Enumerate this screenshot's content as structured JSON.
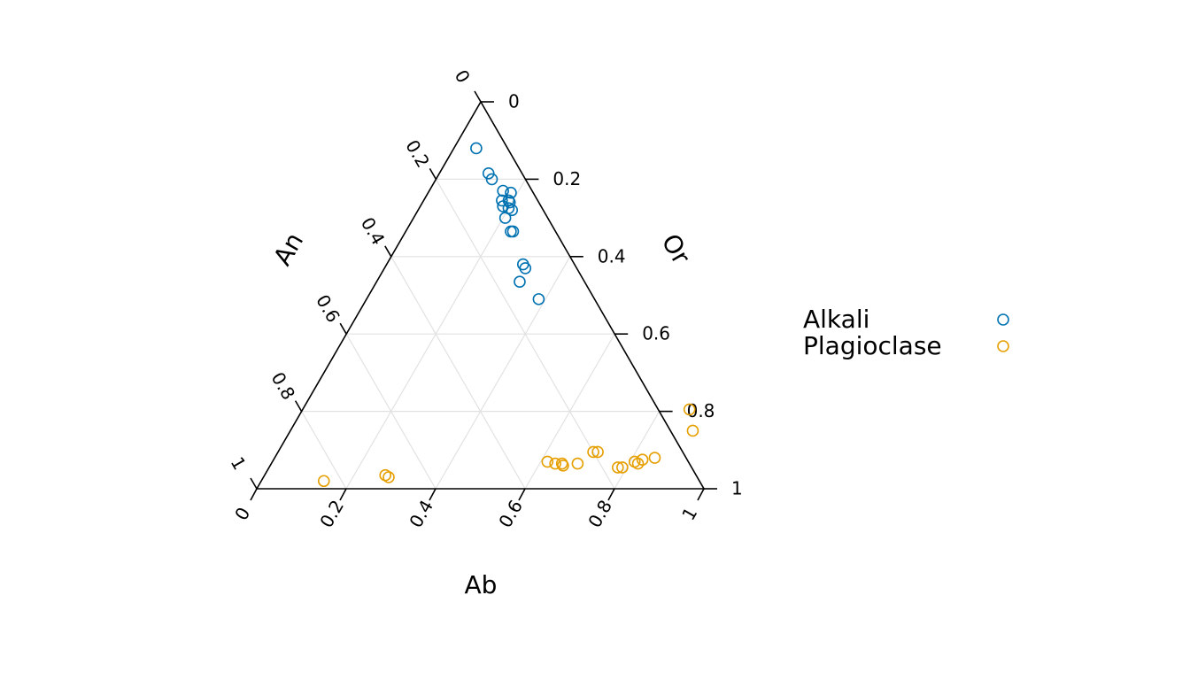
{
  "chart_data": {
    "type": "scatter",
    "subtype": "ternary",
    "axes": {
      "left": {
        "name": "An",
        "ticks": [
          "0",
          "0.2",
          "0.4",
          "0.6",
          "0.8",
          "1"
        ]
      },
      "right": {
        "name": "Or",
        "ticks": [
          "1",
          "0.8",
          "0.6",
          "0.4",
          "0.2",
          "0"
        ]
      },
      "bottom": {
        "name": "Ab",
        "ticks": [
          "0",
          "0.2",
          "0.4",
          "0.6",
          "0.8",
          "1"
        ]
      }
    },
    "grid": true,
    "grid_step": 0.2,
    "legend_position": "right",
    "series": [
      {
        "name": "Alkali",
        "color": "#0072B2",
        "marker": "open-circle",
        "points": [
          {
            "Ab": 0.05,
            "Or": 0.88,
            "An": 0.07
          },
          {
            "Ab": 0.11,
            "Or": 0.815,
            "An": 0.075
          },
          {
            "Ab": 0.125,
            "Or": 0.8,
            "An": 0.075
          },
          {
            "Ab": 0.165,
            "Or": 0.77,
            "An": 0.065
          },
          {
            "Ab": 0.185,
            "Or": 0.765,
            "An": 0.05
          },
          {
            "Ab": 0.175,
            "Or": 0.745,
            "An": 0.08
          },
          {
            "Ab": 0.19,
            "Or": 0.745,
            "An": 0.065
          },
          {
            "Ab": 0.195,
            "Or": 0.74,
            "An": 0.065
          },
          {
            "Ab": 0.185,
            "Or": 0.73,
            "An": 0.085
          },
          {
            "Ab": 0.2,
            "Or": 0.725,
            "An": 0.075
          },
          {
            "Ab": 0.21,
            "Or": 0.72,
            "An": 0.07
          },
          {
            "Ab": 0.205,
            "Or": 0.7,
            "An": 0.095
          },
          {
            "Ab": 0.235,
            "Or": 0.665,
            "An": 0.1
          },
          {
            "Ab": 0.24,
            "Or": 0.665,
            "An": 0.095
          },
          {
            "Ab": 0.305,
            "Or": 0.58,
            "An": 0.115
          },
          {
            "Ab": 0.315,
            "Or": 0.57,
            "An": 0.115
          },
          {
            "Ab": 0.32,
            "Or": 0.535,
            "An": 0.145
          },
          {
            "Ab": 0.385,
            "Or": 0.49,
            "An": 0.125
          }
        ]
      },
      {
        "name": "Plagioclase",
        "color": "#E69F00",
        "marker": "open-circle",
        "points": [
          {
            "Ab": 0.14,
            "Or": 0.02,
            "An": 0.84
          },
          {
            "Ab": 0.27,
            "Or": 0.035,
            "An": 0.695
          },
          {
            "Ab": 0.28,
            "Or": 0.03,
            "An": 0.69
          },
          {
            "Ab": 0.615,
            "Or": 0.07,
            "An": 0.315
          },
          {
            "Ab": 0.635,
            "Or": 0.065,
            "An": 0.3
          },
          {
            "Ab": 0.65,
            "Or": 0.065,
            "An": 0.285
          },
          {
            "Ab": 0.655,
            "Or": 0.06,
            "An": 0.285
          },
          {
            "Ab": 0.685,
            "Or": 0.065,
            "An": 0.25
          },
          {
            "Ab": 0.705,
            "Or": 0.095,
            "An": 0.2
          },
          {
            "Ab": 0.715,
            "Or": 0.095,
            "An": 0.19
          },
          {
            "Ab": 0.78,
            "Or": 0.055,
            "An": 0.165
          },
          {
            "Ab": 0.79,
            "Or": 0.055,
            "An": 0.155
          },
          {
            "Ab": 0.81,
            "Or": 0.07,
            "An": 0.12
          },
          {
            "Ab": 0.82,
            "Or": 0.065,
            "An": 0.115
          },
          {
            "Ab": 0.825,
            "Or": 0.075,
            "An": 0.1
          },
          {
            "Ab": 0.85,
            "Or": 0.08,
            "An": 0.07
          },
          {
            "Ab": 0.9,
            "Or": 0.15,
            "An": -0.05
          },
          {
            "Ab": 0.865,
            "Or": 0.205,
            "An": -0.07
          }
        ]
      }
    ]
  }
}
